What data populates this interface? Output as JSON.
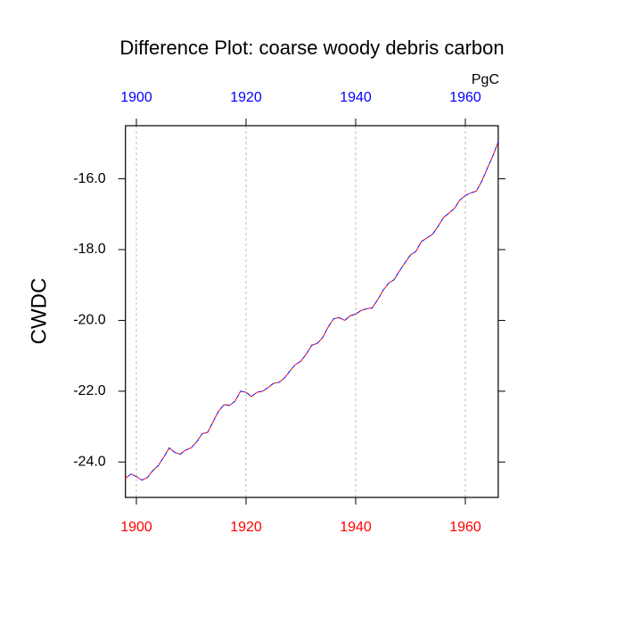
{
  "chart_data": {
    "type": "line",
    "title": "Difference Plot: coarse woody debris carbon",
    "y_label": "CWDC",
    "units_label": "PgC",
    "x": [
      1898,
      1899,
      1900,
      1901,
      1902,
      1903,
      1904,
      1905,
      1906,
      1907,
      1908,
      1909,
      1910,
      1911,
      1912,
      1913,
      1914,
      1915,
      1916,
      1917,
      1918,
      1919,
      1920,
      1921,
      1922,
      1923,
      1924,
      1925,
      1926,
      1927,
      1928,
      1929,
      1930,
      1931,
      1932,
      1933,
      1934,
      1935,
      1936,
      1937,
      1938,
      1939,
      1940,
      1941,
      1942,
      1943,
      1944,
      1945,
      1946,
      1947,
      1948,
      1949,
      1950,
      1951,
      1952,
      1953,
      1954,
      1955,
      1956,
      1957,
      1958,
      1959,
      1960,
      1961,
      1962,
      1963,
      1964,
      1965,
      1966
    ],
    "series": [
      {
        "color": "#ff0000",
        "values": [
          -24.46,
          -24.34,
          -24.41,
          -24.51,
          -24.44,
          -24.24,
          -24.1,
          -23.86,
          -23.6,
          -23.73,
          -23.78,
          -23.66,
          -23.6,
          -23.43,
          -23.2,
          -23.16,
          -22.86,
          -22.56,
          -22.38,
          -22.4,
          -22.28,
          -22.0,
          -22.03,
          -22.15,
          -22.03,
          -22.0,
          -21.9,
          -21.78,
          -21.75,
          -21.63,
          -21.43,
          -21.25,
          -21.15,
          -20.95,
          -20.7,
          -20.65,
          -20.48,
          -20.18,
          -19.95,
          -19.92,
          -20.0,
          -19.87,
          -19.82,
          -19.72,
          -19.67,
          -19.65,
          -19.42,
          -19.15,
          -18.95,
          -18.85,
          -18.6,
          -18.37,
          -18.15,
          -18.05,
          -17.77,
          -17.67,
          -17.57,
          -17.35,
          -17.1,
          -16.97,
          -16.84,
          -16.6,
          -16.47,
          -16.4,
          -16.35,
          -16.07,
          -15.71,
          -15.36,
          -14.96
        ]
      },
      {
        "color": "#0000ff",
        "values": [
          -24.46,
          -24.34,
          -24.41,
          -24.51,
          -24.44,
          -24.24,
          -24.1,
          -23.86,
          -23.6,
          -23.73,
          -23.78,
          -23.66,
          -23.6,
          -23.43,
          -23.2,
          -23.16,
          -22.86,
          -22.56,
          -22.38,
          -22.4,
          -22.28,
          -22.0,
          -22.03,
          -22.15,
          -22.03,
          -22.0,
          -21.9,
          -21.78,
          -21.75,
          -21.63,
          -21.43,
          -21.25,
          -21.15,
          -20.95,
          -20.7,
          -20.65,
          -20.48,
          -20.18,
          -19.95,
          -19.92,
          -20.0,
          -19.87,
          -19.82,
          -19.72,
          -19.67,
          -19.65,
          -19.42,
          -19.15,
          -18.95,
          -18.85,
          -18.6,
          -18.37,
          -18.15,
          -18.05,
          -17.77,
          -17.67,
          -17.57,
          -17.35,
          -17.1,
          -16.97,
          -16.84,
          -16.6,
          -16.47,
          -16.4,
          -16.35,
          -16.07,
          -15.71,
          -15.36,
          -14.96
        ]
      }
    ],
    "xlim": [
      1898,
      1966
    ],
    "xticks": [
      1900,
      1920,
      1940,
      1960
    ],
    "ylim": [
      -25,
      -14.5
    ],
    "yticks": [
      {
        "value": -24,
        "label": "-24.0"
      },
      {
        "value": -22,
        "label": "-22.0"
      },
      {
        "value": -20,
        "label": "-20.0"
      },
      {
        "value": -18,
        "label": "-18.0"
      },
      {
        "value": -16,
        "label": "-16.0"
      }
    ],
    "x_tick_colors": {
      "bottom": "#ff0000",
      "top": "#0000ff"
    },
    "grid": true
  }
}
